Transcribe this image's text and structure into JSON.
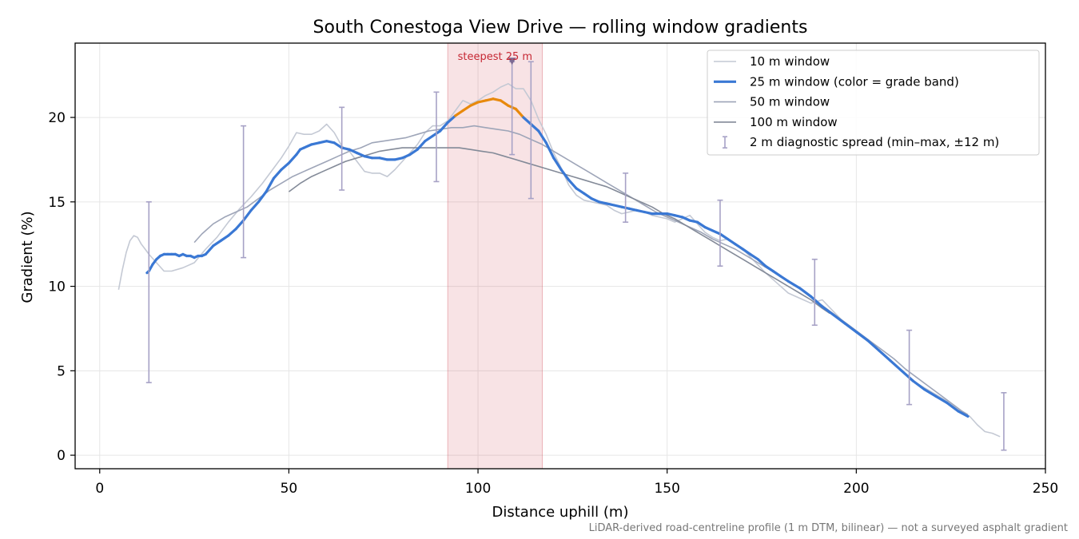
{
  "chart_data": {
    "type": "line",
    "title": "South Conestoga View Drive — rolling window gradients",
    "xlabel": "Distance uphill (m)",
    "ylabel": "Gradient (%)",
    "xlim": [
      -6.5,
      250
    ],
    "ylim": [
      -0.8,
      24.4
    ],
    "xticks": [
      0,
      50,
      100,
      150,
      200,
      250
    ],
    "yticks": [
      0,
      5,
      10,
      15,
      20
    ],
    "grid": true,
    "legend_position": "top-right",
    "footnote": "LiDAR-derived road-centreline profile (1 m DTM, bilinear) — not a surveyed asphalt gradient",
    "highlight": {
      "x_start": 92,
      "x_end": 117,
      "marker_x": 109,
      "label": "steepest 25 m",
      "color": "#c62834"
    },
    "series": [
      {
        "name": "10 m window",
        "color": "#c4c9d4",
        "x": [
          5,
          6,
          7,
          8,
          9,
          10,
          11,
          12,
          13,
          15,
          17,
          19,
          22,
          25,
          28,
          31,
          34,
          37,
          40,
          43,
          46,
          48,
          50,
          52,
          54,
          56,
          58,
          60,
          62,
          64,
          66,
          68,
          70,
          72,
          74,
          76,
          78,
          80,
          82,
          84,
          86,
          88,
          90,
          92,
          94,
          96,
          98,
          100,
          102,
          104,
          106,
          108,
          110,
          112,
          114,
          116,
          118,
          120,
          122,
          124,
          126,
          128,
          130,
          132,
          134,
          136,
          138,
          140,
          142,
          144,
          146,
          148,
          150,
          152,
          154,
          156,
          158,
          160,
          162,
          164,
          166,
          168,
          170,
          173,
          176,
          179,
          182,
          185,
          188,
          191,
          194,
          197,
          200,
          203,
          206,
          209,
          212,
          215,
          218,
          221,
          224,
          227,
          230,
          232,
          234,
          236,
          238
        ],
        "values": [
          9.8,
          11.0,
          12.0,
          12.7,
          13.0,
          12.9,
          12.5,
          12.2,
          11.9,
          11.4,
          10.9,
          10.9,
          11.1,
          11.4,
          12.2,
          12.9,
          13.8,
          14.6,
          15.3,
          16.1,
          17.0,
          17.6,
          18.3,
          19.1,
          19.0,
          19.0,
          19.2,
          19.6,
          19.1,
          18.3,
          18.0,
          17.4,
          16.8,
          16.7,
          16.7,
          16.5,
          16.9,
          17.4,
          17.9,
          18.4,
          19.1,
          19.5,
          19.5,
          19.8,
          20.4,
          21.0,
          20.8,
          21.0,
          21.3,
          21.5,
          21.8,
          22.0,
          21.7,
          21.7,
          21.0,
          19.9,
          19.0,
          17.9,
          17.0,
          16.0,
          15.4,
          15.1,
          15.0,
          14.9,
          14.8,
          14.5,
          14.3,
          14.4,
          14.5,
          14.4,
          14.2,
          14.1,
          14.0,
          13.8,
          14.0,
          14.2,
          13.7,
          13.2,
          12.9,
          12.7,
          12.8,
          12.5,
          12.2,
          11.5,
          10.8,
          10.2,
          9.6,
          9.3,
          9.0,
          9.2,
          8.5,
          7.8,
          7.3,
          6.8,
          6.2,
          5.6,
          5.0,
          4.4,
          4.0,
          3.6,
          3.2,
          2.7,
          2.3,
          1.8,
          1.4,
          1.3,
          1.1
        ]
      },
      {
        "name": "25 m window (color = grade band)",
        "color": "#3a78d4",
        "band_color": "#e8890c",
        "band_threshold": 20,
        "x": [
          12.5,
          13,
          14,
          15,
          16,
          17,
          18,
          19,
          20,
          21,
          22,
          23,
          24,
          25,
          26,
          27,
          28,
          30,
          32,
          34,
          36,
          38,
          40,
          42,
          44,
          46,
          48,
          50,
          52,
          53,
          54,
          56,
          58,
          60,
          62,
          64,
          66,
          68,
          70,
          72,
          74,
          76,
          78,
          80,
          82,
          84,
          86,
          88,
          90,
          92,
          94,
          96,
          98,
          100,
          102,
          104,
          106,
          108,
          110,
          112,
          114,
          116,
          118,
          120,
          122,
          124,
          126,
          128,
          130,
          132,
          134,
          136,
          138,
          140,
          142,
          144,
          146,
          148,
          150,
          152,
          154,
          156,
          158,
          160,
          162,
          164,
          166,
          168,
          170,
          172,
          174,
          176,
          178,
          180,
          182,
          185,
          188,
          191,
          194,
          197,
          200,
          203,
          206,
          209,
          212,
          215,
          218,
          221,
          224,
          227,
          229.5
        ],
        "values": [
          10.8,
          10.9,
          11.3,
          11.6,
          11.8,
          11.9,
          11.9,
          11.9,
          11.9,
          11.8,
          11.9,
          11.8,
          11.8,
          11.7,
          11.8,
          11.8,
          11.9,
          12.4,
          12.7,
          13.0,
          13.4,
          13.9,
          14.5,
          15.0,
          15.6,
          16.4,
          16.9,
          17.3,
          17.8,
          18.1,
          18.2,
          18.4,
          18.5,
          18.6,
          18.5,
          18.2,
          18.1,
          17.9,
          17.7,
          17.6,
          17.6,
          17.5,
          17.5,
          17.6,
          17.8,
          18.1,
          18.6,
          18.9,
          19.2,
          19.7,
          20.1,
          20.4,
          20.7,
          20.9,
          21.0,
          21.1,
          21.0,
          20.7,
          20.5,
          20.0,
          19.6,
          19.2,
          18.5,
          17.6,
          16.9,
          16.3,
          15.8,
          15.5,
          15.2,
          15.0,
          14.9,
          14.8,
          14.7,
          14.6,
          14.5,
          14.4,
          14.3,
          14.3,
          14.3,
          14.2,
          14.1,
          13.9,
          13.8,
          13.5,
          13.3,
          13.1,
          12.8,
          12.5,
          12.2,
          11.9,
          11.6,
          11.2,
          10.9,
          10.6,
          10.3,
          9.9,
          9.4,
          8.8,
          8.3,
          7.8,
          7.3,
          6.8,
          6.2,
          5.6,
          5.0,
          4.4,
          3.9,
          3.5,
          3.1,
          2.6,
          2.3
        ]
      },
      {
        "name": "50 m window",
        "color": "#9ea5b8",
        "x": [
          25,
          27,
          30,
          33,
          36,
          39,
          42,
          45,
          48,
          51,
          54,
          57,
          60,
          63,
          66,
          69,
          72,
          75,
          78,
          81,
          84,
          87,
          90,
          93,
          96,
          99,
          102,
          105,
          108,
          111,
          114,
          117,
          120,
          123,
          126,
          129,
          132,
          135,
          138,
          141,
          144,
          147,
          150,
          153,
          156,
          159,
          162,
          165,
          168,
          171,
          174,
          177,
          180,
          183,
          186,
          189,
          192,
          195,
          198,
          201,
          204,
          207,
          210,
          213,
          216,
          219,
          222,
          225,
          228,
          229.5
        ],
        "values": [
          12.6,
          13.1,
          13.7,
          14.1,
          14.4,
          14.7,
          15.2,
          15.7,
          16.1,
          16.5,
          16.8,
          17.1,
          17.4,
          17.7,
          18.0,
          18.2,
          18.5,
          18.6,
          18.7,
          18.8,
          19.0,
          19.2,
          19.3,
          19.4,
          19.4,
          19.5,
          19.4,
          19.3,
          19.2,
          19.0,
          18.7,
          18.4,
          18.0,
          17.6,
          17.2,
          16.8,
          16.4,
          16.0,
          15.6,
          15.2,
          14.8,
          14.4,
          14.1,
          13.8,
          13.5,
          13.2,
          12.8,
          12.5,
          12.2,
          11.8,
          11.4,
          11.0,
          10.6,
          10.2,
          9.7,
          9.2,
          8.7,
          8.2,
          7.7,
          7.2,
          6.7,
          6.2,
          5.7,
          5.1,
          4.6,
          4.1,
          3.6,
          3.1,
          2.6,
          2.4
        ]
      },
      {
        "name": "100 m window",
        "color": "#838a98",
        "x": [
          50,
          53,
          56,
          59,
          62,
          65,
          68,
          71,
          74,
          77,
          80,
          83,
          86,
          89,
          92,
          95,
          98,
          101,
          104,
          107,
          110,
          113,
          116,
          119,
          122,
          125,
          128,
          131,
          134,
          137,
          140,
          143,
          146,
          149,
          152,
          155,
          158,
          161,
          164,
          167,
          170,
          173,
          176,
          179,
          182,
          185,
          188,
          191,
          193
        ],
        "values": [
          15.6,
          16.1,
          16.5,
          16.8,
          17.1,
          17.4,
          17.6,
          17.8,
          18.0,
          18.1,
          18.2,
          18.2,
          18.2,
          18.2,
          18.2,
          18.2,
          18.1,
          18.0,
          17.9,
          17.7,
          17.5,
          17.3,
          17.1,
          16.9,
          16.7,
          16.5,
          16.3,
          16.1,
          15.9,
          15.6,
          15.3,
          15.0,
          14.7,
          14.3,
          14.0,
          13.6,
          13.2,
          12.8,
          12.4,
          12.0,
          11.6,
          11.2,
          10.8,
          10.4,
          10.0,
          9.6,
          9.2,
          8.7,
          8.4
        ]
      }
    ],
    "error_bars": {
      "name": "2 m diagnostic spread (min–max, ±12 m)",
      "color": "#a7a2c6",
      "x": [
        13,
        38,
        64,
        89,
        109,
        114,
        139,
        164,
        189,
        214,
        239
      ],
      "low": [
        4.3,
        11.7,
        15.7,
        16.2,
        17.8,
        15.2,
        13.8,
        11.2,
        7.7,
        3.0,
        0.3
      ],
      "high": [
        15.0,
        19.5,
        20.6,
        21.5,
        23.3,
        23.3,
        16.7,
        15.1,
        11.6,
        7.4,
        3.7
      ]
    }
  }
}
